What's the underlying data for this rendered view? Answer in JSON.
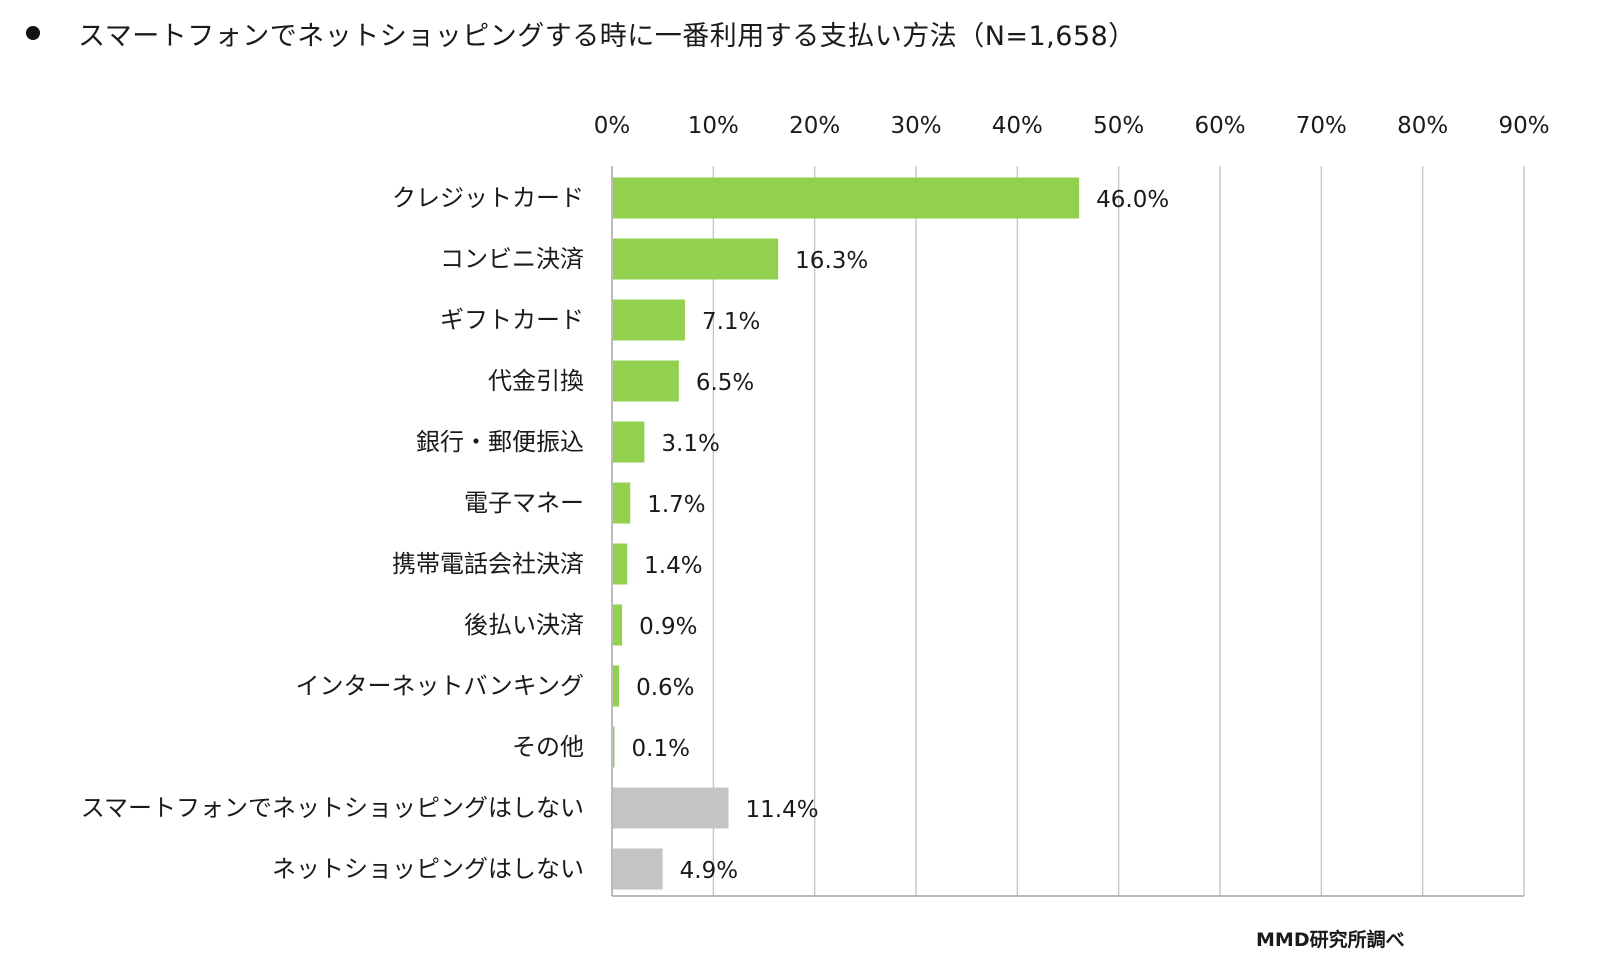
{
  "title": {
    "bullet": "●",
    "text": "スマートフォンでネットショッピングする時に一番利用する支払い方法（N=1,658）"
  },
  "credit": "MMD研究所調べ",
  "colors": {
    "main_bar": "#92d050",
    "negative_bar": "#c4c4c4",
    "grid": "#bfbfbf",
    "axis": "#a6a6a6",
    "text": "#1a1a1a"
  },
  "chart_data": {
    "type": "bar",
    "orientation": "horizontal",
    "title": "スマートフォンでネットショッピングする時に一番利用する支払い方法（N=1,658）",
    "xlim": [
      0,
      90
    ],
    "x_ticks": [
      0,
      10,
      20,
      30,
      40,
      50,
      60,
      70,
      80,
      90
    ],
    "x_tick_labels": [
      "0%",
      "10%",
      "20%",
      "30%",
      "40%",
      "50%",
      "60%",
      "70%",
      "80%",
      "90%"
    ],
    "x_axis_position": "top",
    "grid": true,
    "unit": "%",
    "categories": [
      "クレジットカード",
      "コンビニ決済",
      "ギフトカード",
      "代金引換",
      "銀行・郵便振込",
      "電子マネー",
      "携帯電話会社決済",
      "後払い決済",
      "インターネットバンキング",
      "その他",
      "スマートフォンでネットショッピングはしない",
      "ネットショッピングはしない"
    ],
    "values": [
      46.0,
      16.3,
      7.1,
      6.5,
      3.1,
      1.7,
      1.4,
      0.9,
      0.6,
      0.1,
      11.4,
      4.9
    ],
    "value_labels": [
      "46.0%",
      "16.3%",
      "7.1%",
      "6.5%",
      "3.1%",
      "1.7%",
      "1.4%",
      "0.9%",
      "0.6%",
      "0.1%",
      "11.4%",
      "4.9%"
    ],
    "bar_colors": [
      "#92d050",
      "#92d050",
      "#92d050",
      "#92d050",
      "#92d050",
      "#92d050",
      "#92d050",
      "#92d050",
      "#92d050",
      "#92d050",
      "#c4c4c4",
      "#c4c4c4"
    ]
  }
}
